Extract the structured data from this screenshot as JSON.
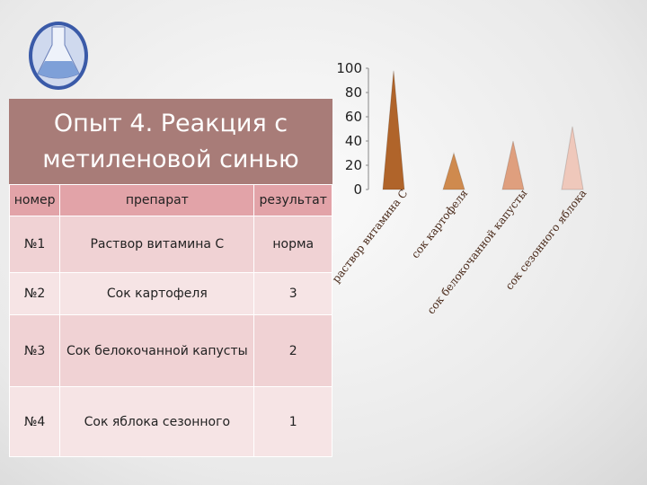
{
  "title": "Опыт 4. Реакция с метиленовой синью",
  "table": {
    "header": [
      "номер",
      "препарат",
      "результат"
    ],
    "rows": [
      [
        "№1",
        "Раствор витамина С",
        "норма"
      ],
      [
        "№2",
        "Сок картофеля",
        "3"
      ],
      [
        "№3",
        "Сок белокочанной капусты",
        "2"
      ],
      [
        "№4",
        "Сок яблока сезонного",
        "1"
      ]
    ]
  },
  "chart_data": {
    "type": "cone",
    "categories": [
      "раствор витамина С",
      "сок картофеля",
      "сок белокочанной капусты",
      "сок сезонного яблока"
    ],
    "values": [
      98,
      30,
      40,
      52
    ],
    "colors": [
      "#b0642a",
      "#cf8a4e",
      "#df9f7e",
      "#efc8bb"
    ],
    "ylim": [
      0,
      100
    ],
    "yticks": [
      0,
      20,
      40,
      60,
      80,
      100
    ]
  }
}
